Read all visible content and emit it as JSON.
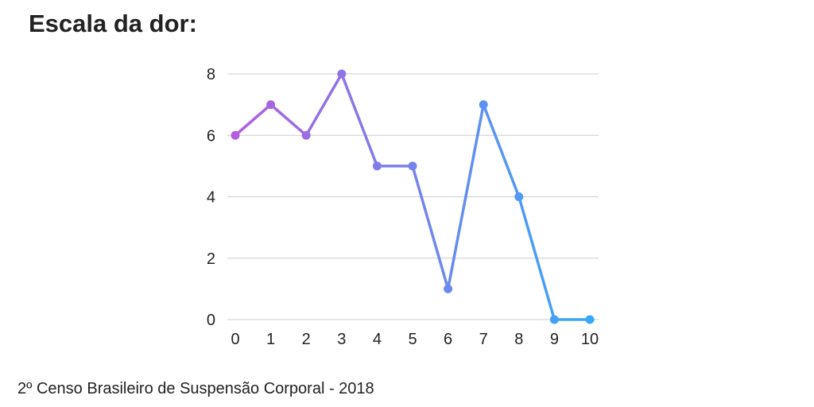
{
  "chart_data": {
    "type": "line",
    "title": "Escala da dor:",
    "x": [
      0,
      1,
      2,
      3,
      4,
      5,
      6,
      7,
      8,
      9,
      10
    ],
    "values": [
      6,
      7,
      6,
      8,
      5,
      5,
      1,
      7,
      4,
      0,
      0
    ],
    "xticks": [
      "0",
      "1",
      "2",
      "3",
      "4",
      "5",
      "6",
      "7",
      "8",
      "9",
      "10"
    ],
    "yticks": [
      "0",
      "2",
      "4",
      "6",
      "8"
    ],
    "ylim": [
      0,
      8
    ],
    "xlim": [
      0,
      10
    ],
    "grid": true,
    "xlabel": "",
    "ylabel": "",
    "colors": {
      "start": "#b35ee0",
      "end": "#38a8f8",
      "grid": "#d6d6d6"
    }
  },
  "footer": "2º Censo Brasileiro de Suspensão Corporal - 2018"
}
